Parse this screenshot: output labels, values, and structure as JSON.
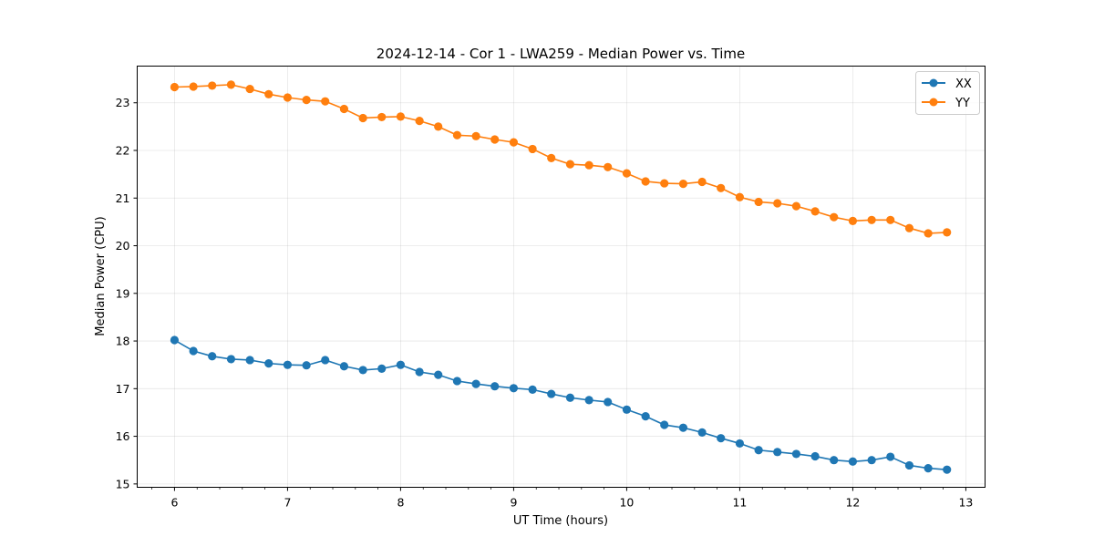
{
  "chart_data": {
    "type": "line",
    "title": "2024-12-14 - Cor 1 - LWA259 - Median Power vs. Time",
    "xlabel": "UT Time (hours)",
    "ylabel": "Median Power (CPU)",
    "xlim": [
      5.67,
      13.17
    ],
    "ylim": [
      14.93,
      23.77
    ],
    "xticks": [
      6,
      7,
      8,
      9,
      10,
      11,
      12,
      13
    ],
    "yticks": [
      15,
      16,
      17,
      18,
      19,
      20,
      21,
      22,
      23
    ],
    "grid": true,
    "legend_position": "top-right",
    "x": [
      6.0,
      6.167,
      6.333,
      6.5,
      6.667,
      6.833,
      7.0,
      7.167,
      7.333,
      7.5,
      7.667,
      7.833,
      8.0,
      8.167,
      8.333,
      8.5,
      8.667,
      8.833,
      9.0,
      9.167,
      9.333,
      9.5,
      9.667,
      9.833,
      10.0,
      10.167,
      10.333,
      10.5,
      10.667,
      10.833,
      11.0,
      11.167,
      11.333,
      11.5,
      11.667,
      11.833,
      12.0,
      12.167,
      12.333,
      12.5,
      12.667,
      12.833
    ],
    "series": [
      {
        "name": "XX",
        "color": "#1f77b4",
        "values": [
          18.02,
          17.79,
          17.68,
          17.62,
          17.6,
          17.53,
          17.5,
          17.49,
          17.6,
          17.47,
          17.39,
          17.42,
          17.5,
          17.35,
          17.29,
          17.16,
          17.1,
          17.05,
          17.01,
          16.98,
          16.89,
          16.81,
          16.76,
          16.72,
          16.56,
          16.42,
          16.24,
          16.18,
          16.08,
          15.96,
          15.85,
          15.71,
          15.67,
          15.63,
          15.58,
          15.5,
          15.47,
          15.5,
          15.57,
          15.39,
          15.33,
          15.3
        ]
      },
      {
        "name": "YY",
        "color": "#ff7f0e",
        "values": [
          23.33,
          23.34,
          23.36,
          23.38,
          23.29,
          23.18,
          23.11,
          23.06,
          23.03,
          22.87,
          22.68,
          22.7,
          22.71,
          22.62,
          22.5,
          22.32,
          22.3,
          22.23,
          22.17,
          22.03,
          21.84,
          21.71,
          21.69,
          21.65,
          21.52,
          21.35,
          21.31,
          21.3,
          21.34,
          21.21,
          21.02,
          20.92,
          20.89,
          20.83,
          20.72,
          20.6,
          20.52,
          20.54,
          20.54,
          20.37,
          20.26,
          20.28
        ]
      }
    ]
  }
}
